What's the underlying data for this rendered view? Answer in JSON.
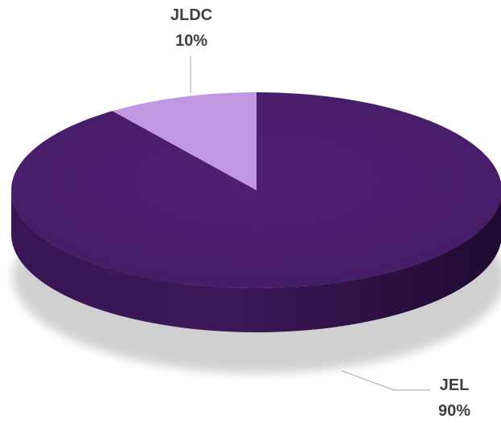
{
  "chart_data": {
    "type": "pie",
    "variant": "3d",
    "slices": [
      {
        "category": "JLDC",
        "value": 10,
        "label": "10%",
        "color": "#c197e2"
      },
      {
        "category": "JEL",
        "value": 90,
        "label": "90%",
        "color": "#4d1f6e"
      }
    ],
    "legend": "none",
    "data_labels": "category-and-percent, outside with leader lines"
  }
}
